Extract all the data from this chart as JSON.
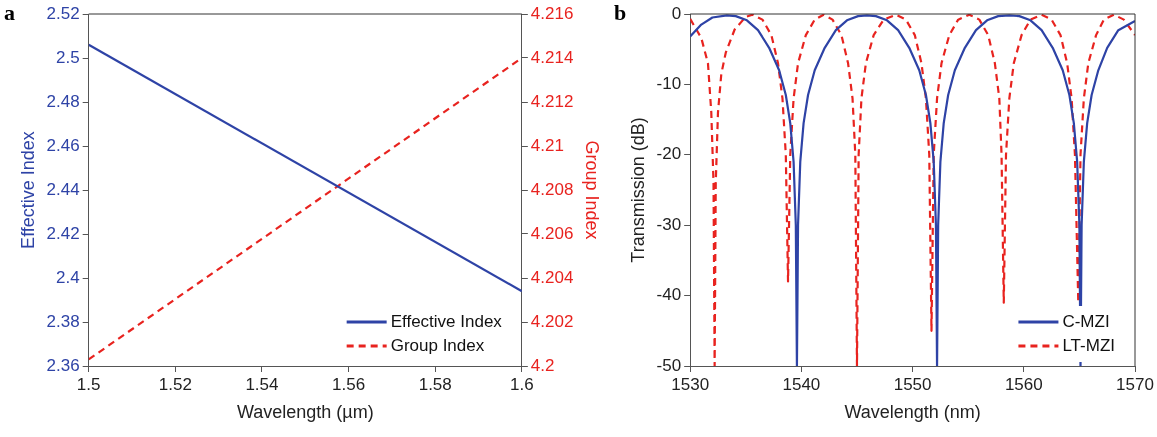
{
  "chart_data": [
    {
      "type": "line",
      "title": "a",
      "xlabel": "Wavelength (µm)",
      "ylabel": "Effective Index",
      "y2label": "Group Index",
      "xlim": [
        1.5,
        1.6
      ],
      "xticks": [
        1.5,
        1.52,
        1.54,
        1.56,
        1.58,
        1.6
      ],
      "ylim": [
        2.36,
        2.52
      ],
      "yticks": [
        2.36,
        2.38,
        2.4,
        2.42,
        2.44,
        2.46,
        2.48,
        2.5,
        2.52
      ],
      "y2lim": [
        4.2,
        4.216
      ],
      "y2ticks": [
        4.2,
        4.202,
        4.204,
        4.206,
        4.208,
        4.21,
        4.212,
        4.214,
        4.216
      ],
      "grid": false,
      "legend": "bottom right",
      "series": [
        {
          "name": "Effective Index",
          "color": "#2e43a6",
          "line_style": "solid",
          "x": [
            1.5,
            1.6
          ],
          "values": [
            2.506,
            2.394
          ]
        },
        {
          "name": "Group Index",
          "color": "#e8231f",
          "line_style": "dashed",
          "axis": "y2",
          "x": [
            1.5,
            1.6
          ],
          "values": [
            4.2003,
            4.214
          ]
        }
      ]
    },
    {
      "type": "line",
      "title": "b",
      "xlabel": "Wavelength (nm)",
      "ylabel": "Transmission (dB)",
      "xlim": [
        1530,
        1570
      ],
      "xticks": [
        1530,
        1540,
        1550,
        1560,
        1570
      ],
      "ylim": [
        -50,
        0
      ],
      "yticks": [
        -50,
        -40,
        -30,
        -20,
        -10,
        0
      ],
      "grid": false,
      "legend": "bottom right",
      "series": [
        {
          "name": "C-MZI",
          "color": "#2e43a6",
          "line_style": "solid",
          "x": [
            1530,
            1531,
            1532,
            1533.3,
            1534.1,
            1535.1,
            1536.1,
            1537.1,
            1538,
            1538.6,
            1539,
            1539.3,
            1539.5,
            1539.6,
            1539.7,
            1539.9,
            1540.2,
            1540.6,
            1541.2,
            1542.1,
            1543.1,
            1544.1,
            1545.1,
            1545.9,
            1546.7,
            1547.7,
            1548.7,
            1549.7,
            1550.6,
            1551.2,
            1551.6,
            1551.9,
            1552.1,
            1552.2,
            1552.3,
            1552.5,
            1552.8,
            1553.2,
            1553.8,
            1554.7,
            1555.7,
            1556.7,
            1557.7,
            1558.7,
            1559.6,
            1560.6,
            1561.6,
            1562.6,
            1563.5,
            1564.1,
            1564.5,
            1564.8,
            1565,
            1565.1,
            1565.2,
            1565.4,
            1565.7,
            1566.1,
            1566.7,
            1567.5,
            1568.5,
            1570
          ],
          "values": [
            -3.2,
            -1.5,
            -0.5,
            -0.2,
            -0.3,
            -0.9,
            -2.3,
            -4.8,
            -8,
            -11.5,
            -15.5,
            -21,
            -30,
            -50,
            -30,
            -21,
            -15.5,
            -11.5,
            -8,
            -4.8,
            -2.3,
            -0.9,
            -0.3,
            -0.2,
            -0.3,
            -0.9,
            -2.3,
            -4.8,
            -8,
            -11.5,
            -15.5,
            -21,
            -30,
            -50,
            -30,
            -21,
            -15.5,
            -11.5,
            -8,
            -4.8,
            -2.3,
            -0.9,
            -0.3,
            -0.2,
            -0.3,
            -0.9,
            -2.3,
            -4.8,
            -8,
            -11.5,
            -15.5,
            -21,
            -30,
            -50,
            -30,
            -21,
            -15.5,
            -11.5,
            -8,
            -4.8,
            -2.3,
            -1
          ]
        },
        {
          "name": "LT-MZI",
          "color": "#e8231f",
          "line_style": "dashed",
          "x": [
            1530,
            1531,
            1531.6,
            1531.9,
            1532.1,
            1532.2,
            1532.3,
            1532.5,
            1532.8,
            1533.2,
            1534,
            1535,
            1535.6,
            1536.5,
            1537.3,
            1537.9,
            1538.3,
            1538.6,
            1538.8,
            1539,
            1539.3,
            1539.7,
            1540.4,
            1541.2,
            1542,
            1542.8,
            1543.6,
            1544.2,
            1544.6,
            1544.85,
            1545,
            1545.15,
            1545.4,
            1545.8,
            1546.5,
            1547.4,
            1548.5,
            1549.4,
            1550.2,
            1550.8,
            1551.2,
            1551.5,
            1551.7,
            1551.9,
            1552.2,
            1552.6,
            1553.3,
            1554.1,
            1555.1,
            1556,
            1556.8,
            1557.4,
            1557.8,
            1558,
            1558.2,
            1558.4,
            1558.7,
            1559.1,
            1559.8,
            1560.6,
            1561.6,
            1562.5,
            1563.3,
            1563.9,
            1564.3,
            1564.6,
            1564.9,
            1565.1,
            1565.4,
            1565.8,
            1566.5,
            1567.2,
            1568.1,
            1569,
            1570
          ],
          "values": [
            -0.7,
            -3.4,
            -7,
            -14,
            -24,
            -50,
            -24,
            -14,
            -8.5,
            -5.5,
            -2.2,
            -0.4,
            -0.1,
            -0.8,
            -3,
            -7,
            -12,
            -20,
            -38,
            -20,
            -12,
            -7,
            -3,
            -0.8,
            -0.1,
            -0.8,
            -3,
            -7,
            -12,
            -20,
            -50,
            -20,
            -12,
            -7,
            -3,
            -0.8,
            -0.1,
            -0.8,
            -3,
            -7,
            -12,
            -20,
            -45,
            -20,
            -12,
            -7,
            -3,
            -0.8,
            -0.1,
            -0.8,
            -3,
            -7,
            -12,
            -20,
            -41,
            -20,
            -12,
            -7,
            -3,
            -0.8,
            -0.1,
            -0.8,
            -3,
            -7,
            -12,
            -20,
            -41,
            -20,
            -12,
            -7,
            -3,
            -0.8,
            -0.1,
            -0.8,
            -3
          ]
        }
      ]
    }
  ]
}
